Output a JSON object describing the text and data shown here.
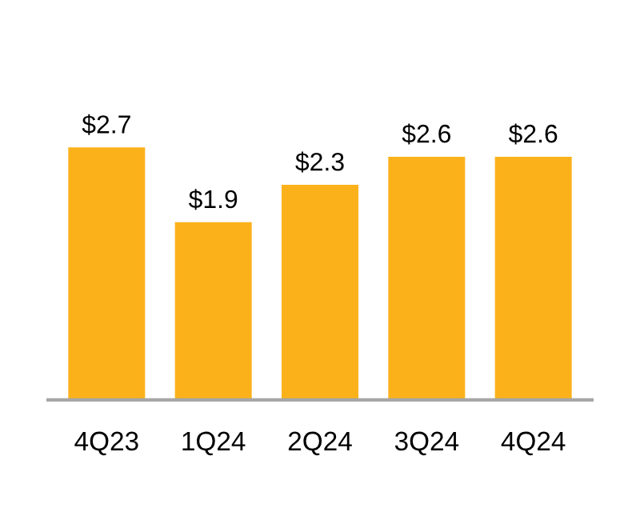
{
  "chart_data": {
    "type": "bar",
    "categories": [
      "4Q23",
      "1Q24",
      "2Q24",
      "3Q24",
      "4Q24"
    ],
    "values": [
      2.7,
      1.9,
      2.3,
      2.6,
      2.6
    ],
    "value_labels": [
      "$2.7",
      "$1.9",
      "$2.3",
      "$2.6",
      "$2.6"
    ],
    "color": "#fbb21a",
    "grid": false,
    "legend": false
  }
}
